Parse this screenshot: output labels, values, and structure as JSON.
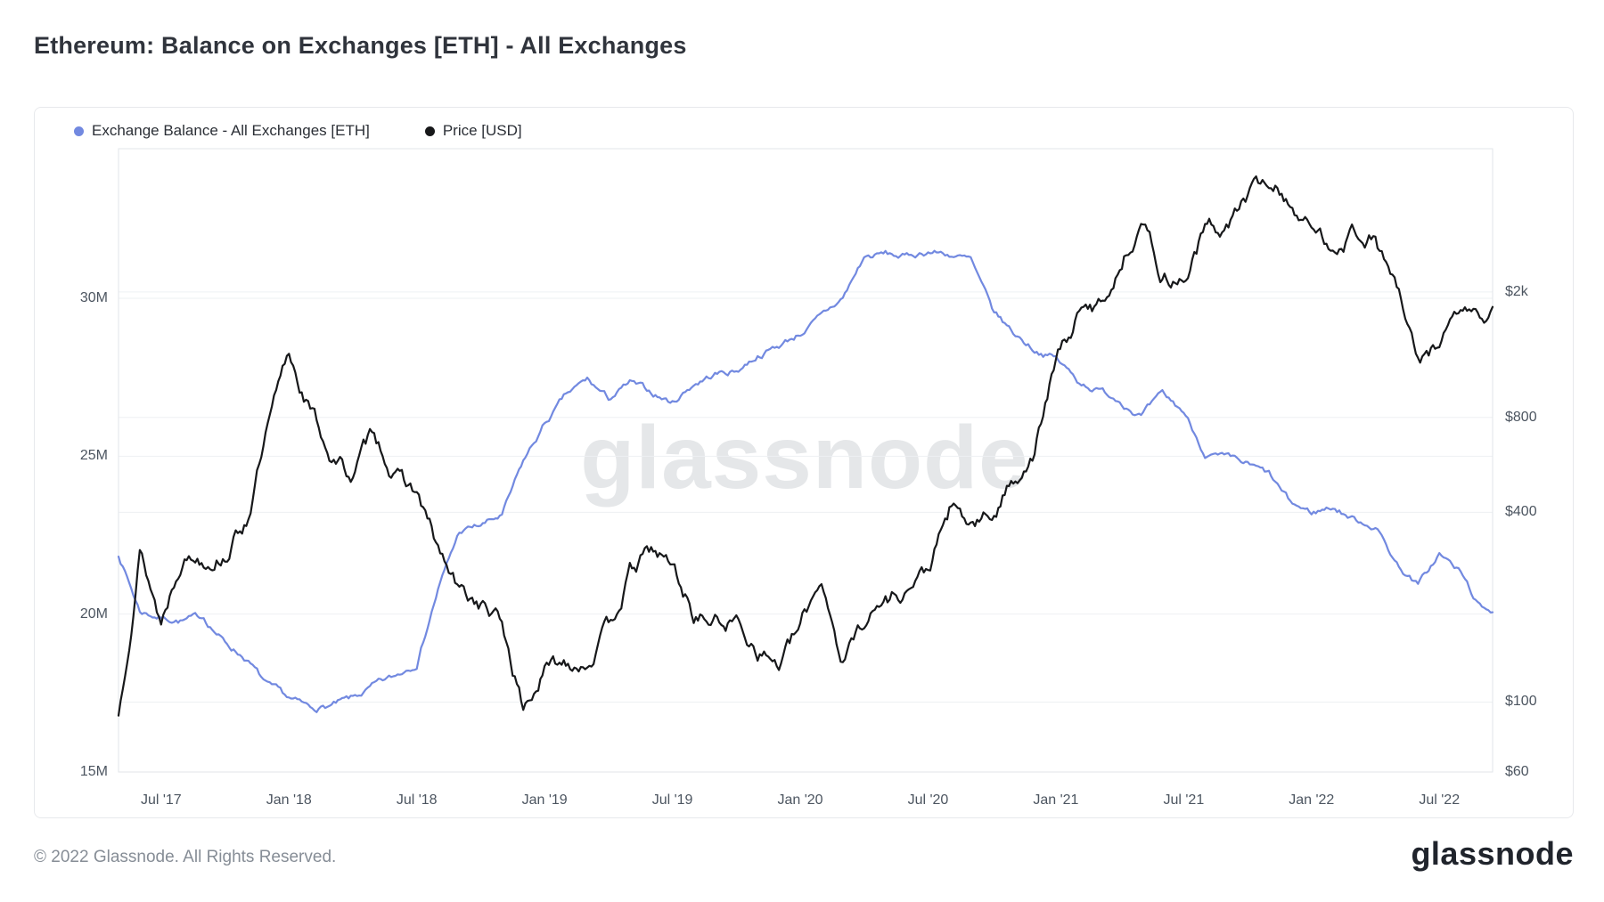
{
  "page": {
    "title": "Ethereum: Balance on Exchanges [ETH] - All Exchanges",
    "watermark": "glassnode",
    "footer_copyright": "© 2022 Glassnode. All Rights Reserved.",
    "brand_logo": "glassnode"
  },
  "legend": [
    {
      "label": "Exchange Balance - All Exchanges [ETH]",
      "color": "#7289e0"
    },
    {
      "label": "Price [USD]",
      "color": "#17181a"
    }
  ],
  "chart_data": {
    "type": "line",
    "title": "Ethereum: Balance on Exchanges [ETH] - All Exchanges",
    "legend_position": "top-left",
    "grid": "horizontal",
    "x_axis": {
      "start_month": "2017-05",
      "end_month": "2022-09",
      "total_months": 64.5,
      "tick_labels": [
        "Jul '17",
        "Jan '18",
        "Jul '18",
        "Jan '19",
        "Jul '19",
        "Jan '20",
        "Jul '20",
        "Jan '21",
        "Jul '21",
        "Jan '22",
        "Jul '22"
      ],
      "tick_month_offsets": [
        2,
        8,
        14,
        20,
        26,
        32,
        38,
        44,
        50,
        56,
        62
      ]
    },
    "left_axis": {
      "scale": "linear",
      "tick_labels": [
        "15M",
        "20M",
        "25M",
        "30M"
      ],
      "tick_values_millions": [
        15,
        20,
        25,
        30
      ],
      "range_millions": [
        15,
        34.7
      ]
    },
    "right_axis": {
      "scale": "log",
      "tick_labels": [
        "$60",
        "$100",
        "$400",
        "$800",
        "$2k"
      ],
      "tick_values": [
        60,
        100,
        400,
        800,
        2000
      ],
      "range": [
        60,
        5700
      ]
    },
    "months": [
      "2017-05",
      "2017-06",
      "2017-07",
      "2017-08",
      "2017-09",
      "2017-10",
      "2017-11",
      "2017-12",
      "2018-01",
      "2018-02",
      "2018-03",
      "2018-04",
      "2018-05",
      "2018-06",
      "2018-07",
      "2018-08",
      "2018-09",
      "2018-10",
      "2018-11",
      "2018-12",
      "2019-01",
      "2019-02",
      "2019-03",
      "2019-04",
      "2019-05",
      "2019-06",
      "2019-07",
      "2019-08",
      "2019-09",
      "2019-10",
      "2019-11",
      "2019-12",
      "2020-01",
      "2020-02",
      "2020-03",
      "2020-04",
      "2020-05",
      "2020-06",
      "2020-07",
      "2020-08",
      "2020-09",
      "2020-10",
      "2020-11",
      "2020-12",
      "2021-01",
      "2021-02",
      "2021-03",
      "2021-04",
      "2021-05",
      "2021-06",
      "2021-07",
      "2021-08",
      "2021-09",
      "2021-10",
      "2021-11",
      "2021-12",
      "2022-01",
      "2022-02",
      "2022-03",
      "2022-04",
      "2022-05",
      "2022-06",
      "2022-07",
      "2022-08",
      "2022-09"
    ],
    "series": [
      {
        "name": "Exchange Balance - All Exchanges [ETH]",
        "axis": "left",
        "unit": "million ETH",
        "color": "#7289e0",
        "values": [
          21.9,
          20.1,
          19.9,
          19.8,
          19.9,
          19.1,
          18.6,
          17.7,
          17.3,
          17.0,
          17.1,
          17.3,
          17.7,
          18.0,
          18.5,
          20.8,
          22.6,
          22.8,
          23.1,
          24.8,
          26.0,
          26.9,
          27.4,
          26.8,
          27.3,
          27.0,
          26.7,
          27.3,
          27.6,
          27.7,
          28.2,
          28.5,
          28.9,
          29.4,
          30.0,
          31.3,
          31.4,
          31.3,
          31.5,
          31.4,
          31.2,
          29.6,
          28.9,
          28.4,
          28.1,
          27.4,
          27.1,
          26.8,
          26.3,
          26.9,
          26.4,
          25.1,
          24.9,
          24.7,
          24.4,
          23.5,
          23.2,
          23.4,
          23.0,
          22.8,
          21.6,
          20.9,
          21.9,
          21.3,
          20.1
        ]
      },
      {
        "name": "Price [USD]",
        "axis": "right",
        "unit": "USD",
        "color": "#17181a",
        "values": [
          90,
          310,
          180,
          300,
          290,
          300,
          380,
          720,
          1250,
          850,
          600,
          520,
          730,
          520,
          460,
          300,
          220,
          205,
          175,
          95,
          125,
          135,
          137,
          170,
          255,
          300,
          270,
          190,
          180,
          180,
          150,
          132,
          170,
          250,
          135,
          185,
          210,
          230,
          260,
          400,
          360,
          385,
          510,
          630,
          1200,
          1650,
          1800,
          2400,
          3500,
          2250,
          2200,
          3150,
          3200,
          4050,
          4500,
          3900,
          3100,
          2850,
          3150,
          2950,
          2050,
          1150,
          1400,
          1750,
          1650
        ]
      }
    ]
  }
}
